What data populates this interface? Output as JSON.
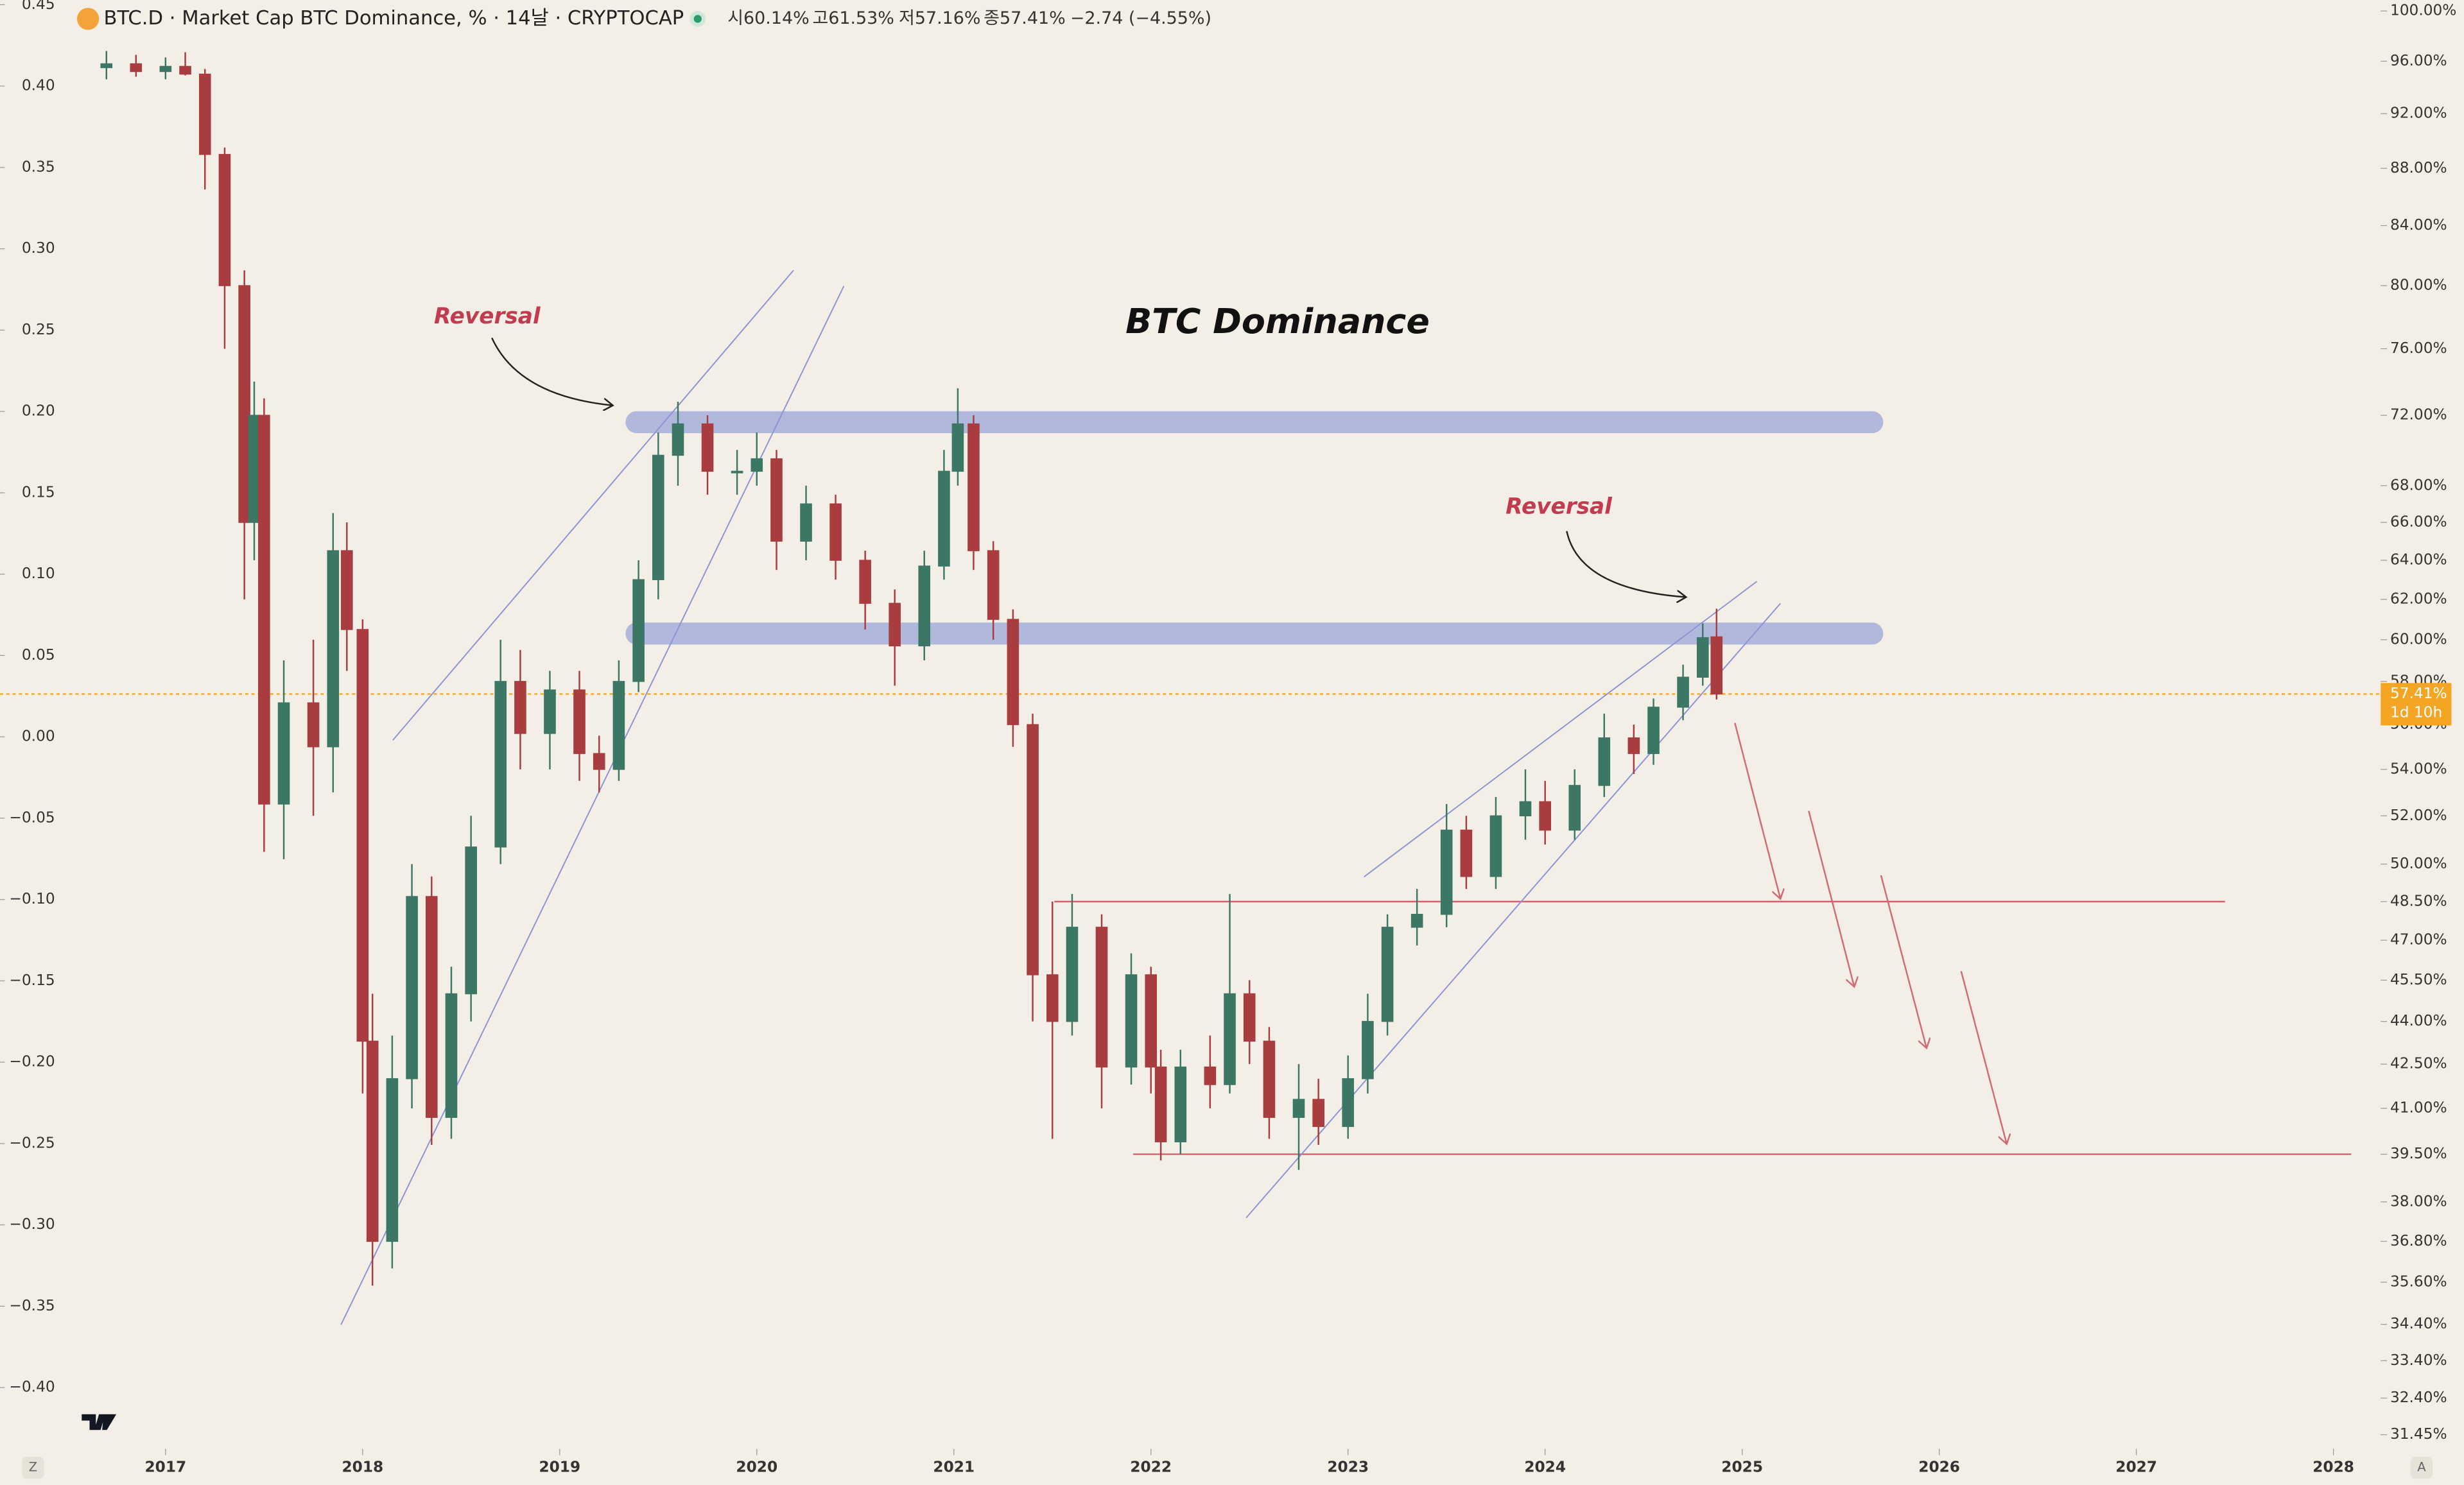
{
  "chart_data": {
    "type": "candlestick",
    "title": "BTC Dominance",
    "symbol": "BTC.D · Market Cap BTC Dominance, % · 14날 · CRYPTOCAP",
    "ohlc_header": [
      "시60.14%",
      "고61.53%",
      "저57.16%",
      "종57.41%",
      "−2.74 (−4.55%)"
    ],
    "annotations": [
      "Reversal",
      "Reversal"
    ],
    "up_color": "#3b7764",
    "down_color": "#a83c3f",
    "log_scale": true,
    "x": [
      2016.7,
      2016.85,
      2017.0,
      2017.1,
      2017.2,
      2017.3,
      2017.4,
      2017.45,
      2017.5,
      2017.6,
      2017.75,
      2017.85,
      2017.92,
      2018.0,
      2018.05,
      2018.15,
      2018.25,
      2018.35,
      2018.45,
      2018.55,
      2018.7,
      2018.8,
      2018.95,
      2019.1,
      2019.2,
      2019.3,
      2019.4,
      2019.5,
      2019.6,
      2019.75,
      2019.9,
      2020.0,
      2020.1,
      2020.25,
      2020.4,
      2020.55,
      2020.7,
      2020.85,
      2020.95,
      2021.02,
      2021.1,
      2021.2,
      2021.3,
      2021.4,
      2021.5,
      2021.6,
      2021.75,
      2021.9,
      2022.0,
      2022.05,
      2022.15,
      2022.3,
      2022.4,
      2022.5,
      2022.6,
      2022.75,
      2022.85,
      2023.0,
      2023.1,
      2023.2,
      2023.35,
      2023.5,
      2023.6,
      2023.75,
      2023.9,
      2024.0,
      2024.15,
      2024.3,
      2024.45,
      2024.55,
      2024.7,
      2024.8,
      2024.87
    ],
    "open": [
      95.5,
      95.8,
      95.2,
      95.6,
      95.0,
      89.0,
      80.0,
      66.0,
      72.0,
      52.5,
      57.0,
      55.0,
      64.5,
      60.5,
      43.3,
      36.8,
      42.0,
      48.7,
      40.7,
      45.0,
      50.7,
      58.0,
      55.6,
      57.6,
      54.7,
      54.0,
      58.0,
      63.0,
      69.7,
      71.5,
      68.8,
      68.8,
      69.5,
      65.0,
      67.0,
      64.0,
      61.8,
      59.7,
      63.7,
      68.8,
      71.5,
      64.5,
      61.0,
      56.0,
      45.7,
      44.0,
      47.5,
      42.4,
      45.7,
      42.4,
      39.9,
      42.4,
      41.8,
      45.0,
      43.3,
      40.7,
      41.3,
      40.4,
      42.0,
      44.0,
      47.5,
      48.0,
      51.4,
      49.5,
      52.0,
      52.6,
      51.4,
      53.3,
      55.4,
      54.7,
      56.8,
      58.2,
      60.14
    ],
    "high": [
      96.8,
      96.5,
      96.3,
      96.7,
      95.4,
      89.5,
      81.0,
      74.0,
      73.0,
      59.0,
      60.0,
      66.5,
      66.0,
      61.0,
      45.0,
      43.5,
      50.0,
      49.5,
      46.0,
      52.0,
      60.0,
      59.5,
      58.5,
      58.5,
      55.5,
      59.0,
      64.0,
      71.0,
      72.8,
      72.0,
      70.0,
      71.0,
      70.0,
      68.0,
      67.5,
      64.5,
      62.5,
      64.5,
      70.0,
      73.6,
      72.0,
      65.0,
      61.5,
      56.5,
      48.5,
      48.8,
      48.0,
      46.5,
      46.0,
      43.0,
      43.0,
      43.5,
      48.8,
      45.5,
      43.8,
      42.5,
      42.0,
      42.8,
      45.0,
      48.0,
      49.0,
      52.5,
      52.0,
      52.8,
      54.0,
      53.5,
      54.0,
      56.5,
      56.0,
      57.2,
      58.8,
      60.8,
      61.53
    ],
    "low": [
      94.6,
      94.8,
      94.6,
      94.9,
      86.5,
      76.0,
      62.0,
      64.0,
      50.5,
      50.2,
      52.0,
      53.0,
      58.5,
      41.5,
      35.5,
      36.0,
      41.0,
      39.8,
      40.0,
      44.0,
      50.0,
      54.0,
      54.0,
      53.5,
      53.0,
      53.5,
      57.5,
      62.0,
      68.0,
      67.5,
      67.5,
      68.0,
      63.5,
      64.0,
      63.0,
      60.5,
      57.8,
      59.0,
      63.0,
      68.0,
      63.5,
      60.0,
      55.0,
      44.0,
      40.0,
      43.5,
      41.0,
      41.8,
      41.5,
      39.3,
      39.5,
      41.0,
      41.5,
      42.5,
      40.0,
      39.0,
      39.8,
      40.0,
      41.5,
      43.5,
      46.8,
      47.5,
      49.0,
      49.0,
      51.0,
      50.8,
      51.0,
      52.8,
      53.8,
      54.2,
      56.2,
      57.8,
      57.16
    ],
    "close": [
      95.8,
      95.2,
      95.6,
      95.0,
      89.0,
      80.0,
      66.0,
      72.0,
      52.5,
      57.0,
      55.0,
      64.5,
      60.5,
      43.3,
      36.8,
      42.0,
      48.7,
      40.7,
      45.0,
      50.7,
      58.0,
      55.6,
      57.6,
      54.7,
      54.0,
      58.0,
      63.0,
      69.7,
      71.5,
      68.8,
      68.8,
      69.5,
      65.0,
      67.0,
      64.0,
      61.8,
      59.7,
      63.7,
      68.8,
      71.5,
      64.5,
      61.0,
      56.0,
      45.7,
      44.0,
      47.5,
      42.4,
      45.7,
      42.4,
      39.9,
      42.4,
      41.8,
      45.0,
      43.3,
      40.7,
      41.3,
      40.4,
      42.0,
      44.0,
      47.5,
      48.0,
      51.4,
      49.5,
      52.0,
      52.6,
      51.4,
      53.3,
      55.4,
      54.7,
      56.8,
      58.2,
      60.1,
      57.41
    ],
    "xlim": [
      2016.16,
      2028.24
    ],
    "xticks": [
      2017,
      2018,
      2019,
      2020,
      2021,
      2022,
      2023,
      2024,
      2025,
      2026,
      2027,
      2028
    ],
    "ylim": [
      31.45,
      100
    ],
    "yticks": [
      {
        "value": 100,
        "label": "100.00%"
      },
      {
        "value": 96,
        "label": "96.00%"
      },
      {
        "value": 92,
        "label": "92.00%"
      },
      {
        "value": 88,
        "label": "88.00%"
      },
      {
        "value": 84,
        "label": "84.00%"
      },
      {
        "value": 80,
        "label": "80.00%"
      },
      {
        "value": 76,
        "label": "76.00%"
      },
      {
        "value": 72,
        "label": "72.00%"
      },
      {
        "value": 68,
        "label": "68.00%"
      },
      {
        "value": 66,
        "label": "66.00%"
      },
      {
        "value": 64,
        "label": "64.00%"
      },
      {
        "value": 62,
        "label": "62.00%"
      },
      {
        "value": 60,
        "label": "60.00%"
      },
      {
        "value": 58,
        "label": "58.00%"
      },
      {
        "value": 56,
        "label": "56.00%"
      },
      {
        "value": 54,
        "label": "54.00%"
      },
      {
        "value": 52,
        "label": "52.00%"
      },
      {
        "value": 50,
        "label": "50.00%"
      },
      {
        "value": 48.5,
        "label": "48.50%"
      },
      {
        "value": 47,
        "label": "47.00%"
      },
      {
        "value": 45.5,
        "label": "45.50%"
      },
      {
        "value": 44,
        "label": "44.00%"
      },
      {
        "value": 42.5,
        "label": "42.50%"
      },
      {
        "value": 41,
        "label": "41.00%"
      },
      {
        "value": 39.5,
        "label": "39.50%"
      },
      {
        "value": 38,
        "label": "38.00%"
      },
      {
        "value": 36.8,
        "label": "36.80%"
      },
      {
        "value": 35.6,
        "label": "35.60%"
      },
      {
        "value": 34.4,
        "label": "34.40%"
      },
      {
        "value": 33.4,
        "label": "33.40%"
      },
      {
        "value": 32.4,
        "label": "32.40%"
      },
      {
        "value": 31.45,
        "label": "31.45%"
      }
    ],
    "y2lim": [
      -0.4,
      0.45
    ],
    "y2ticks": [
      {
        "value": 0.45,
        "label": "0.45"
      },
      {
        "value": 0.4,
        "label": "0.40"
      },
      {
        "value": 0.35,
        "label": "0.35"
      },
      {
        "value": 0.3,
        "label": "0.30"
      },
      {
        "value": 0.25,
        "label": "0.25"
      },
      {
        "value": 0.2,
        "label": "0.20"
      },
      {
        "value": 0.15,
        "label": "0.15"
      },
      {
        "value": 0.1,
        "label": "0.10"
      },
      {
        "value": 0.05,
        "label": "0.05"
      },
      {
        "value": 0,
        "label": "0.00"
      },
      {
        "value": -0.05,
        "label": "−0.05"
      },
      {
        "value": -0.1,
        "label": "−0.10"
      },
      {
        "value": -0.15,
        "label": "−0.15"
      },
      {
        "value": -0.2,
        "label": "−0.20"
      },
      {
        "value": -0.25,
        "label": "−0.25"
      },
      {
        "value": -0.3,
        "label": "−0.30"
      },
      {
        "value": -0.35,
        "label": "−0.35"
      },
      {
        "value": -0.4,
        "label": "−0.40"
      }
    ],
    "zones": [
      {
        "value": 71.6,
        "from": 2019.39,
        "to": 2025.66,
        "color": "#a9b3dc"
      },
      {
        "value": 60.3,
        "from": 2019.39,
        "to": 2025.66,
        "color": "#a9b3dc"
      }
    ],
    "levels": [
      {
        "value": 48.5,
        "from": 2021.51,
        "to": 2027.45,
        "color": "#d9606a"
      },
      {
        "value": 39.5,
        "from": 2021.91,
        "to": 2028.09,
        "color": "#d9606a"
      }
    ],
    "price_label": {
      "value": 57.41,
      "label": "57.41%",
      "color": "#f5a524"
    },
    "countdown": "1d 10h",
    "corner_buttons": [
      "Z",
      "A"
    ]
  }
}
